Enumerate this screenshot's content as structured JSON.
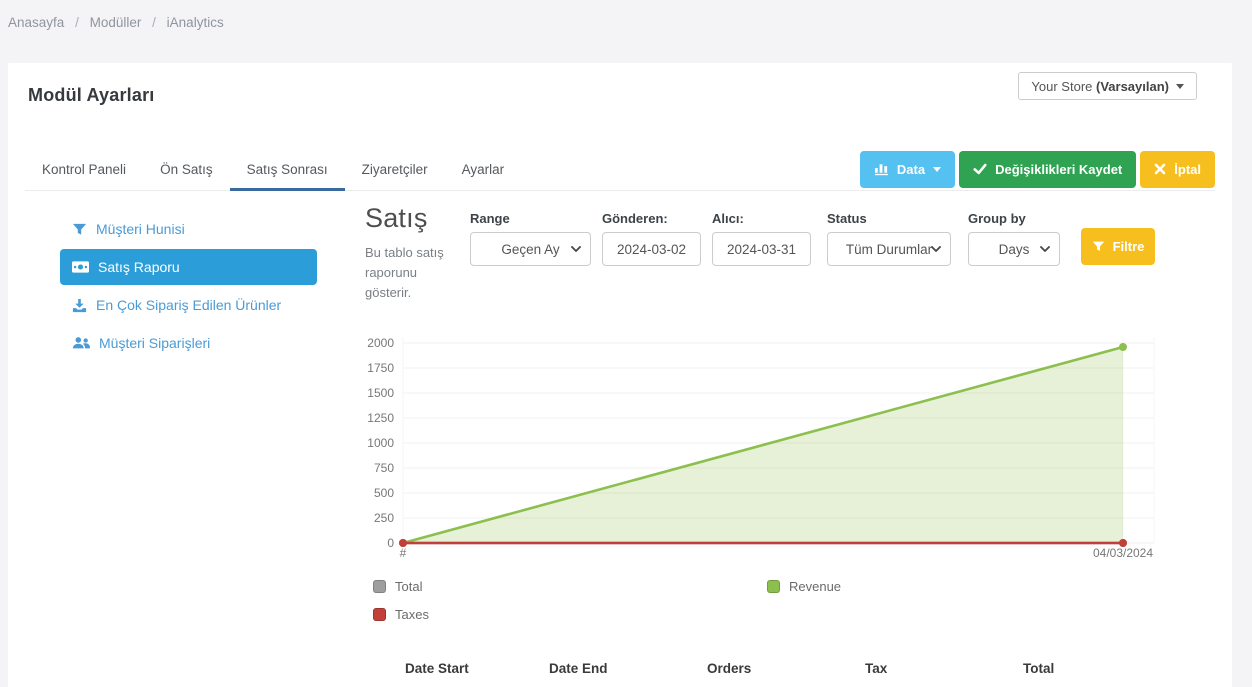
{
  "colors": {
    "accent_blue": "#2b9dd8",
    "link_blue": "#4a9bd5",
    "info": "#54c1f0",
    "success": "#2fa352",
    "warning": "#f7bf1e",
    "tab_underline": "#38699f"
  },
  "breadcrumb": {
    "separator": "/",
    "items": [
      "Anasayfa",
      "Modüller",
      "iAnalytics"
    ]
  },
  "header": {
    "title": "Modül Ayarları",
    "store_selector": {
      "text": "Your Store",
      "bold": "(Varsayılan)"
    }
  },
  "tabs": [
    {
      "label": "Kontrol Paneli",
      "active": false
    },
    {
      "label": "Ön Satış",
      "active": false
    },
    {
      "label": "Satış Sonrası",
      "active": true
    },
    {
      "label": "Ziyaretçiler",
      "active": false
    },
    {
      "label": "Ayarlar",
      "active": false
    }
  ],
  "toolbar": {
    "data_button": "Data",
    "save_button": "Değişiklikleri Kaydet",
    "cancel_button": "İptal"
  },
  "sidebar": {
    "items": [
      {
        "label": "Müşteri Hunisi",
        "icon": "funnel-icon",
        "active": false
      },
      {
        "label": "Satış Raporu",
        "icon": "money-bill-icon",
        "active": true
      },
      {
        "label": "En Çok Sipariş Edilen Ürünler",
        "icon": "download-icon",
        "active": false
      },
      {
        "label": "Müşteri Siparişleri",
        "icon": "users-icon",
        "active": false
      }
    ]
  },
  "report": {
    "title": "Satış",
    "description": "Bu tablo satış raporunu gösterir.",
    "filters": {
      "range": {
        "label": "Range",
        "value": "Geçen Ay"
      },
      "from": {
        "label": "Gönderen:",
        "value": "2024-03-02"
      },
      "to": {
        "label": "Alıcı:",
        "value": "2024-03-31"
      },
      "status": {
        "label": "Status",
        "value": "Tüm Durumlar"
      },
      "group_by": {
        "label": "Group by",
        "value": "Days"
      },
      "filter_button": "Filtre"
    }
  },
  "chart_data": {
    "type": "area",
    "title": "Satış",
    "x_labels": [
      "#",
      "04/03/2024"
    ],
    "series": [
      {
        "name": "Total",
        "color": "#9e9e9e",
        "values": [
          0,
          0
        ],
        "fill": false
      },
      {
        "name": "Revenue",
        "color": "#8cbf4d",
        "values": [
          0,
          1960
        ],
        "fill": true,
        "fill_color": "rgba(140,191,77,0.22)"
      },
      {
        "name": "Taxes",
        "color": "#c2403a",
        "values": [
          0,
          0
        ],
        "fill": false
      }
    ],
    "ylim": [
      0,
      2000
    ],
    "yticks": [
      0,
      250,
      500,
      750,
      1000,
      1250,
      1500,
      1750,
      2000
    ],
    "grid": true,
    "legend_position": "bottom"
  },
  "table": {
    "columns": [
      "Date Start",
      "Date End",
      "Orders",
      "Tax",
      "Total"
    ]
  }
}
